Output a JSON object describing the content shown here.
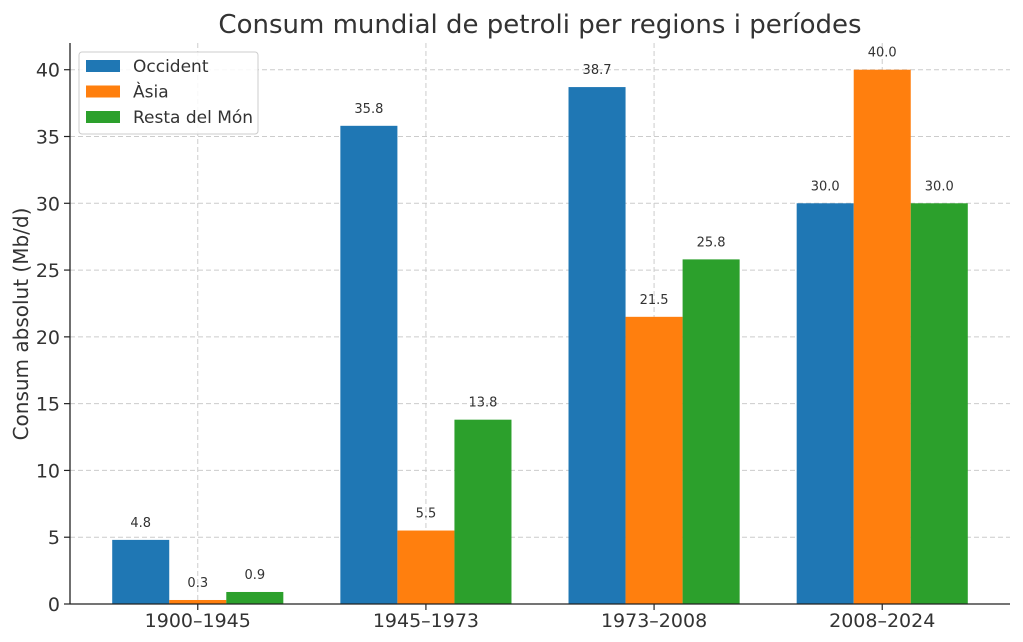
{
  "chart_data": {
    "type": "bar",
    "title": "Consum mundial de petroli per regions i períodes",
    "xlabel": "",
    "ylabel": "Consum absolut (Mb/d)",
    "categories": [
      "1900–1945",
      "1945–1973",
      "1973–2008",
      "2008–2024"
    ],
    "series": [
      {
        "name": "Occident",
        "color": "#1f77b4",
        "values": [
          4.8,
          35.8,
          38.7,
          30.0
        ]
      },
      {
        "name": "Àsia",
        "color": "#ff7f0e",
        "values": [
          0.3,
          5.5,
          21.5,
          40.0
        ]
      },
      {
        "name": "Resta del Món",
        "color": "#2ca02c",
        "values": [
          0.9,
          13.8,
          25.8,
          30.0
        ]
      }
    ],
    "ylim": [
      0,
      42
    ],
    "yticks": [
      0,
      5,
      10,
      15,
      20,
      25,
      30,
      35,
      40
    ],
    "grid": true,
    "legend_position": "top-left"
  }
}
